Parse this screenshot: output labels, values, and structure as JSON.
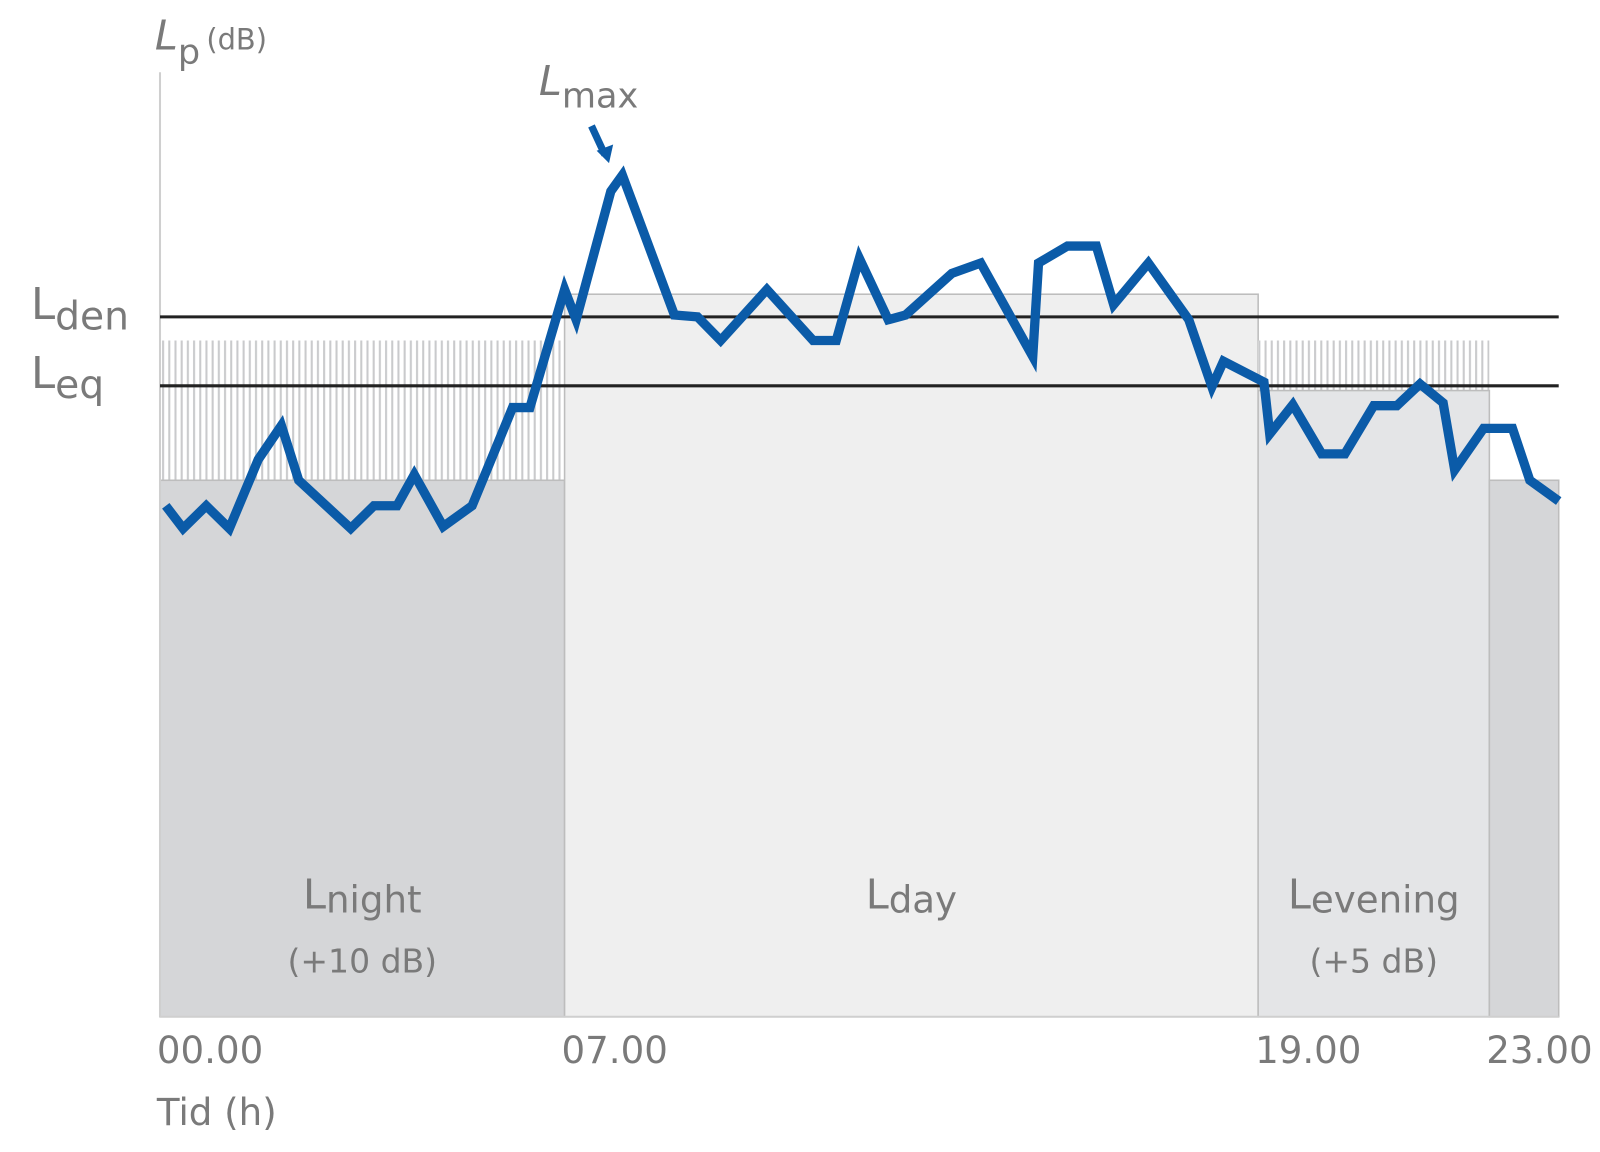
{
  "chart_data": {
    "type": "line",
    "y_label": {
      "main": "L",
      "sub": "p",
      "unit": "(dB)"
    },
    "x_label": "Tid (h)",
    "annotation": {
      "main": "L",
      "sub": "max"
    },
    "x": [
      0.1,
      0.4,
      0.8,
      1.2,
      1.7,
      2.1,
      2.4,
      3.3,
      3.7,
      4.1,
      4.4,
      4.9,
      5.4,
      6.1,
      6.4,
      7.0,
      7.2,
      7.8,
      8.0,
      8.9,
      9.3,
      9.7,
      10.5,
      11.3,
      11.7,
      12.1,
      12.6,
      12.9,
      13.7,
      14.2,
      14.6,
      15.1,
      15.2,
      15.7,
      16.2,
      16.5,
      17.1,
      17.8,
      18.2,
      18.4,
      19.1,
      19.2,
      19.6,
      20.1,
      20.5,
      21.0,
      21.4,
      21.8,
      22.2,
      22.4,
      22.9,
      23.4,
      23.7,
      24.2
    ],
    "series": [
      {
        "color": "#0b5ba8",
        "values": [
          54.1,
          51.7,
          54.1,
          51.7,
          59.0,
          62.6,
          56.8,
          51.7,
          54.1,
          54.1,
          57.4,
          51.9,
          54.1,
          64.5,
          64.5,
          77.0,
          73.8,
          87.4,
          89.1,
          74.3,
          74.1,
          71.6,
          77.0,
          71.6,
          71.6,
          80.3,
          73.8,
          74.3,
          78.7,
          79.8,
          75.4,
          69.9,
          79.8,
          81.6,
          81.6,
          75.4,
          79.8,
          73.8,
          66.7,
          69.4,
          67.2,
          61.7,
          64.8,
          59.6,
          59.6,
          64.7,
          64.7,
          67.0,
          65.0,
          57.9,
          62.3,
          62.3,
          56.8,
          54.6
        ]
      }
    ],
    "xlim": [
      0,
      24.2
    ],
    "ylim": [
      0,
      100
    ],
    "xticks": [
      {
        "value": 0,
        "label": "00.00"
      },
      {
        "value": 7,
        "label": "07.00"
      },
      {
        "value": 19,
        "label": "19.00"
      },
      {
        "value": 23,
        "label": "23.00"
      }
    ],
    "reference_lines": [
      {
        "main": "L",
        "sub": "den",
        "value": 74.1,
        "color": "#222222"
      },
      {
        "main": "L",
        "sub": "eq",
        "value": 66.8,
        "color": "#222222"
      }
    ],
    "periods": [
      {
        "main": "L",
        "sub": "night",
        "note": "(+10 dB)",
        "start": 0,
        "end": 7,
        "level": 56.8,
        "hatch_top": 71.6,
        "color": "#d5d6d8"
      },
      {
        "main": "L",
        "sub": "day",
        "start": 7,
        "end": 19,
        "level": 76.5,
        "color": "#efefef"
      },
      {
        "main": "L",
        "sub": "evening",
        "note": "(+5 dB)",
        "start": 19,
        "end": 23,
        "level": 66.3,
        "hatch_top": 71.6,
        "color": "#e4e5e7"
      },
      {
        "start": 23,
        "end": 24.2,
        "level": 56.8,
        "color": "#d5d6d8"
      }
    ]
  }
}
